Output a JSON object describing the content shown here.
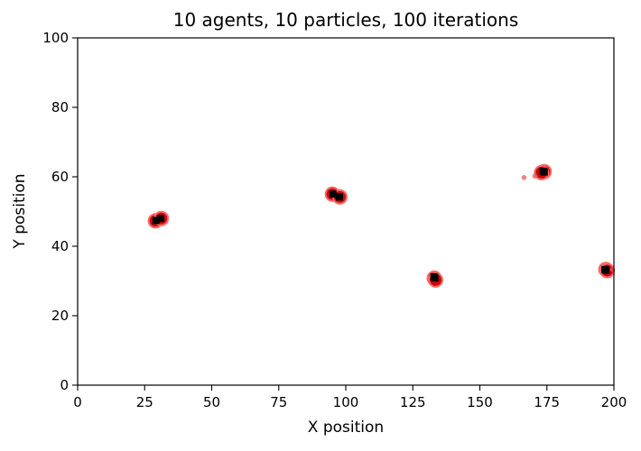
{
  "chart_data": {
    "type": "scatter",
    "title": "10 agents, 10 particles, 100 iterations",
    "xlabel": "X position",
    "ylabel": "Y position",
    "xlim": [
      0,
      200
    ],
    "ylim": [
      0,
      100
    ],
    "xticks": [
      "0",
      "25",
      "50",
      "75",
      "100",
      "125",
      "150",
      "175",
      "200"
    ],
    "yticks": [
      "0",
      "20",
      "40",
      "60",
      "80",
      "100"
    ],
    "grid": false,
    "legend": "none",
    "colors": {
      "particle_fill": "#cc0000",
      "particle_outline": "#ff6666",
      "trail": "#e06060",
      "agent": "#000000"
    },
    "series": [
      {
        "marker": "particle",
        "points": [
          {
            "x": 29.0,
            "y": 47.3
          },
          {
            "x": 31.2,
            "y": 48.0
          },
          {
            "x": 95.0,
            "y": 55.0
          },
          {
            "x": 97.8,
            "y": 54.2
          },
          {
            "x": 133.0,
            "y": 30.8
          },
          {
            "x": 133.5,
            "y": 30.3
          },
          {
            "x": 174.0,
            "y": 61.5
          },
          {
            "x": 173.0,
            "y": 61.2
          },
          {
            "x": 197.0,
            "y": 33.3
          },
          {
            "x": 197.5,
            "y": 33.0
          }
        ]
      },
      {
        "marker": "trail",
        "points": [
          {
            "x": 166.5,
            "y": 59.8
          },
          {
            "x": 170.5,
            "y": 60.2
          },
          {
            "x": 199.5,
            "y": 33.3
          }
        ]
      },
      {
        "marker": "agent",
        "points": [
          {
            "x": 29.2,
            "y": 47.4
          },
          {
            "x": 31.0,
            "y": 48.0
          },
          {
            "x": 95.2,
            "y": 55.0
          },
          {
            "x": 97.6,
            "y": 54.2
          },
          {
            "x": 132.9,
            "y": 31.2
          },
          {
            "x": 133.2,
            "y": 30.9
          },
          {
            "x": 174.0,
            "y": 61.4
          },
          {
            "x": 173.6,
            "y": 61.6
          },
          {
            "x": 196.7,
            "y": 33.3
          },
          {
            "x": 197.0,
            "y": 33.1
          }
        ]
      }
    ]
  }
}
